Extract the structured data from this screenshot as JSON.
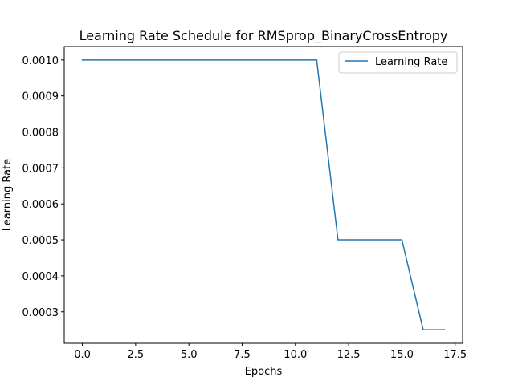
{
  "chart_data": {
    "type": "line",
    "title": "Learning Rate Schedule for RMSprop_BinaryCrossEntropy",
    "xlabel": "Epochs",
    "ylabel": "Learning Rate",
    "xlim": [
      -0.85,
      17.85
    ],
    "ylim": [
      0.0002125,
      0.0010375
    ],
    "xticks": [
      0.0,
      2.5,
      5.0,
      7.5,
      10.0,
      12.5,
      15.0,
      17.5
    ],
    "xtick_labels": [
      "0.0",
      "2.5",
      "5.0",
      "7.5",
      "10.0",
      "12.5",
      "15.0",
      "17.5"
    ],
    "yticks": [
      0.0003,
      0.0004,
      0.0005,
      0.0006,
      0.0007,
      0.0008,
      0.0009,
      0.001
    ],
    "ytick_labels": [
      "0.0003",
      "0.0004",
      "0.0005",
      "0.0006",
      "0.0007",
      "0.0008",
      "0.0009",
      "0.0010"
    ],
    "legend_position": "top-right",
    "series": [
      {
        "name": "Learning Rate",
        "color": "#1f77b4",
        "x": [
          0,
          1,
          2,
          3,
          4,
          5,
          6,
          7,
          8,
          9,
          10,
          11,
          12,
          13,
          14,
          15,
          16,
          17
        ],
        "y": [
          0.001,
          0.001,
          0.001,
          0.001,
          0.001,
          0.001,
          0.001,
          0.001,
          0.001,
          0.001,
          0.001,
          0.001,
          0.0005,
          0.0005,
          0.0005,
          0.0005,
          0.00025,
          0.00025
        ]
      }
    ]
  }
}
